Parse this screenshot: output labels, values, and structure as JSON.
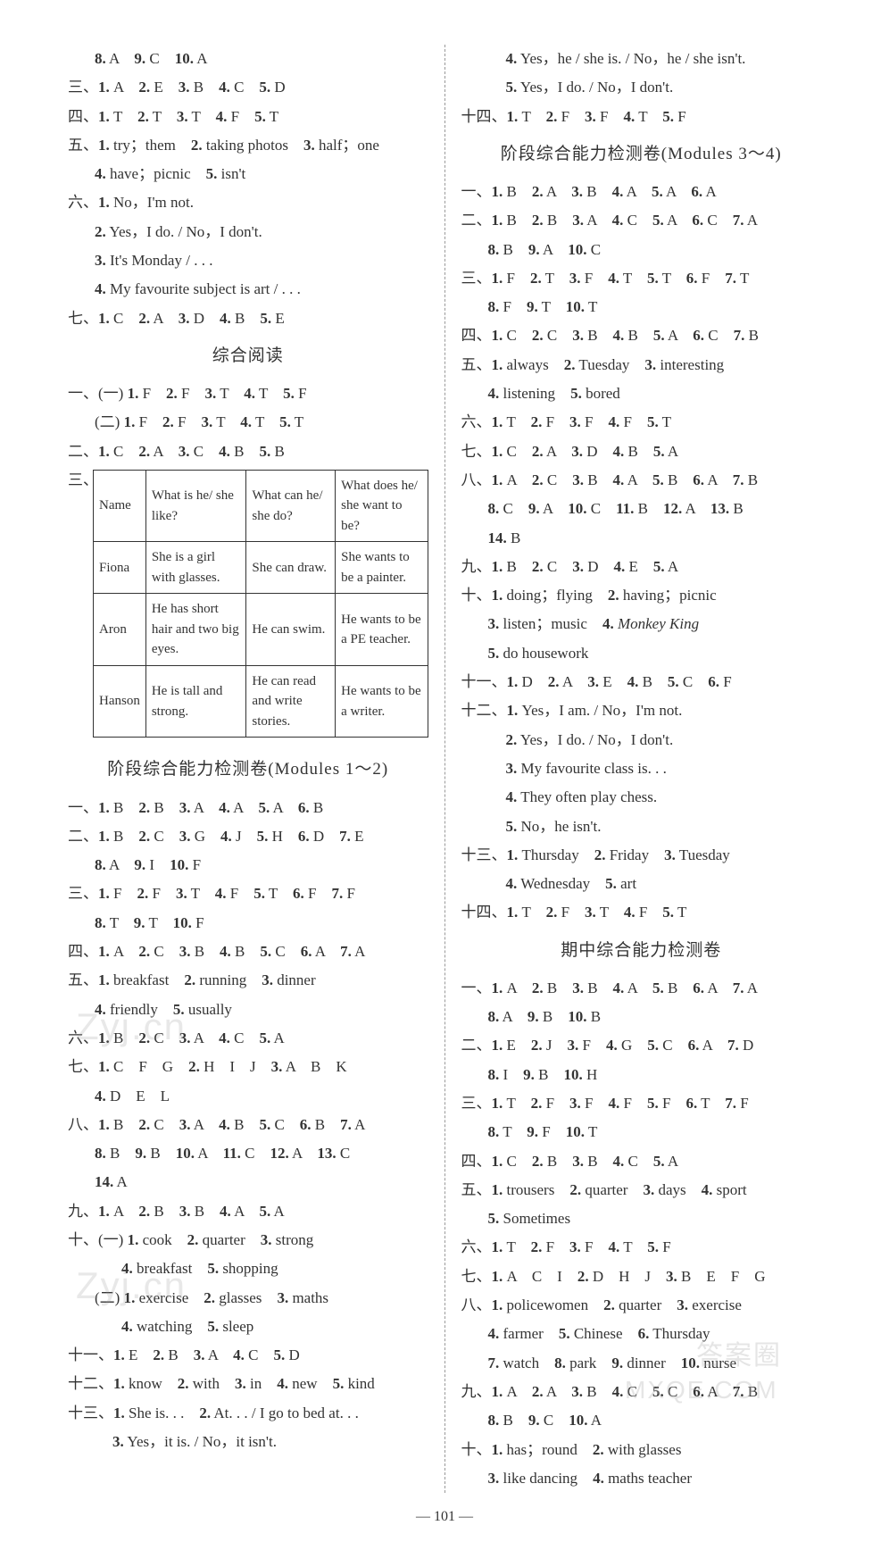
{
  "page_number": "— 101 —",
  "watermarks": [
    "Zyj.cn",
    "Zyj.cn",
    "答案圈",
    "MXQE.COM"
  ],
  "left": {
    "top_lines": [
      {
        "cls": "indent1",
        "html": "<b>8.</b> A　<b>9.</b> C　<b>10.</b> A"
      },
      {
        "cls": "",
        "html": "三、<b>1.</b> A　<b>2.</b> E　<b>3.</b> B　<b>4.</b> C　<b>5.</b> D"
      },
      {
        "cls": "",
        "html": "四、<b>1.</b> T　<b>2.</b> T　<b>3.</b> T　<b>4.</b> F　<b>5.</b> T"
      },
      {
        "cls": "",
        "html": "五、<b>1.</b> try；them　<b>2.</b> taking photos　<b>3.</b> half；one"
      },
      {
        "cls": "indent1",
        "html": "<b>4.</b> have；picnic　<b>5.</b> isn't"
      },
      {
        "cls": "",
        "html": "六、<b>1.</b> No，I'm not."
      },
      {
        "cls": "indent1",
        "html": "<b>2.</b> Yes，I do. / No，I don't."
      },
      {
        "cls": "indent1",
        "html": "<b>3.</b> It's Monday / . . ."
      },
      {
        "cls": "indent1",
        "html": "<b>4.</b> My favourite subject is art / . . ."
      },
      {
        "cls": "",
        "html": "七、<b>1.</b> C　<b>2.</b> A　<b>3.</b> D　<b>4.</b> B　<b>5.</b> E"
      }
    ],
    "reading_title": "综合阅读",
    "reading_lines": [
      {
        "cls": "",
        "html": "一、(一) <b>1.</b> F　<b>2.</b> F　<b>3.</b> T　<b>4.</b> T　<b>5.</b> F"
      },
      {
        "cls": "indent1",
        "html": "(二) <b>1.</b> F　<b>2.</b> F　<b>3.</b> T　<b>4.</b> T　<b>5.</b> T"
      },
      {
        "cls": "",
        "html": "二、<b>1.</b> C　<b>2.</b> A　<b>3.</b> C　<b>4.</b> B　<b>5.</b> B"
      }
    ],
    "table_label": "三、",
    "table": {
      "headers": [
        "Name",
        "What is he/ she like?",
        "What can he/ she do?",
        "What does he/ she want to be?"
      ],
      "rows": [
        [
          "Fiona",
          "She is a girl with glasses.",
          "She can draw.",
          "She wants to be a painter."
        ],
        [
          "Aron",
          "He has short hair and two big eyes.",
          "He can swim.",
          "He wants to be a PE teacher."
        ],
        [
          "Hanson",
          "He is tall and strong.",
          "He can read and write stories.",
          "He wants to be a writer."
        ]
      ],
      "col_widths": [
        "58px",
        "auto",
        "auto",
        "auto"
      ]
    },
    "stage1_title": "阶段综合能力检测卷(Modules 1～2)",
    "stage1_lines": [
      {
        "cls": "",
        "html": "一、<b>1.</b> B　<b>2.</b> B　<b>3.</b> A　<b>4.</b> A　<b>5.</b> A　<b>6.</b> B"
      },
      {
        "cls": "",
        "html": "二、<b>1.</b> B　<b>2.</b> C　<b>3.</b> G　<b>4.</b> J　<b>5.</b> H　<b>6.</b> D　<b>7.</b> E"
      },
      {
        "cls": "indent1",
        "html": "<b>8.</b> A　<b>9.</b> I　<b>10.</b> F"
      },
      {
        "cls": "",
        "html": "三、<b>1.</b> F　<b>2.</b> F　<b>3.</b> T　<b>4.</b> F　<b>5.</b> T　<b>6.</b> F　<b>7.</b> F"
      },
      {
        "cls": "indent1",
        "html": "<b>8.</b> T　<b>9.</b> T　<b>10.</b> F"
      },
      {
        "cls": "",
        "html": "四、<b>1.</b> A　<b>2.</b> C　<b>3.</b> B　<b>4.</b> B　<b>5.</b> C　<b>6.</b> A　<b>7.</b> A"
      },
      {
        "cls": "",
        "html": "五、<b>1.</b> breakfast　<b>2.</b> running　<b>3.</b> dinner"
      },
      {
        "cls": "indent1",
        "html": "<b>4.</b> friendly　<b>5.</b> usually"
      },
      {
        "cls": "",
        "html": "六、<b>1.</b> B　<b>2.</b> C　<b>3.</b> A　<b>4.</b> C　<b>5.</b> A"
      },
      {
        "cls": "",
        "html": "七、<b>1.</b> C　F　G　<b>2.</b> H　I　J　<b>3.</b> A　B　K"
      },
      {
        "cls": "indent1",
        "html": "<b>4.</b> D　E　L"
      },
      {
        "cls": "",
        "html": "八、<b>1.</b> B　<b>2.</b> C　<b>3.</b> A　<b>4.</b> B　<b>5.</b> C　<b>6.</b> B　<b>7.</b> A"
      },
      {
        "cls": "indent1",
        "html": "<b>8.</b> B　<b>9.</b> B　<b>10.</b> A　<b>11.</b> C　<b>12.</b> A　<b>13.</b> C"
      },
      {
        "cls": "indent1",
        "html": "<b>14.</b> A"
      },
      {
        "cls": "",
        "html": "九、<b>1.</b> A　<b>2.</b> B　<b>3.</b> B　<b>4.</b> A　<b>5.</b> A"
      },
      {
        "cls": "",
        "html": "十、(一) <b>1.</b> cook　<b>2.</b> quarter　<b>3.</b> strong"
      },
      {
        "cls": "indent3",
        "html": "<b>4.</b> breakfast　<b>5.</b> shopping"
      },
      {
        "cls": "indent1",
        "html": "(二) <b>1.</b> exercise　<b>2.</b> glasses　<b>3.</b> maths"
      },
      {
        "cls": "indent3",
        "html": "<b>4.</b> watching　<b>5.</b> sleep"
      },
      {
        "cls": "",
        "html": "十一、<b>1.</b> E　<b>2.</b> B　<b>3.</b> A　<b>4.</b> C　<b>5.</b> D"
      },
      {
        "cls": "",
        "html": "十二、<b>1.</b> know　<b>2.</b> with　<b>3.</b> in　<b>4.</b> new　<b>5.</b> kind"
      },
      {
        "cls": "",
        "html": "十三、<b>1.</b> She is. . .　<b>2.</b> At. . . / I go to bed at. . ."
      },
      {
        "cls": "indent2",
        "html": "<b>3.</b> Yes，it is. / No，it isn't."
      }
    ]
  },
  "right": {
    "top_lines": [
      {
        "cls": "indent2",
        "html": "<b>4.</b> Yes，he / she is. / No，he / she isn't."
      },
      {
        "cls": "indent2",
        "html": "<b>5.</b> Yes，I do. / No，I don't."
      },
      {
        "cls": "",
        "html": "十四、<b>1.</b> T　<b>2.</b> F　<b>3.</b> F　<b>4.</b> T　<b>5.</b> F"
      }
    ],
    "stage2_title": "阶段综合能力检测卷(Modules 3～4)",
    "stage2_lines": [
      {
        "cls": "",
        "html": "一、<b>1.</b> B　<b>2.</b> A　<b>3.</b> B　<b>4.</b> A　<b>5.</b> A　<b>6.</b> A"
      },
      {
        "cls": "",
        "html": "二、<b>1.</b> B　<b>2.</b> B　<b>3.</b> A　<b>4.</b> C　<b>5.</b> A　<b>6.</b> C　<b>7.</b> A"
      },
      {
        "cls": "indent1",
        "html": "<b>8.</b> B　<b>9.</b> A　<b>10.</b> C"
      },
      {
        "cls": "",
        "html": "三、<b>1.</b> F　<b>2.</b> T　<b>3.</b> F　<b>4.</b> T　<b>5.</b> T　<b>6.</b> F　<b>7.</b> T"
      },
      {
        "cls": "indent1",
        "html": "<b>8.</b> F　<b>9.</b> T　<b>10.</b> T"
      },
      {
        "cls": "",
        "html": "四、<b>1.</b> C　<b>2.</b> C　<b>3.</b> B　<b>4.</b> B　<b>5.</b> A　<b>6.</b> C　<b>7.</b> B"
      },
      {
        "cls": "",
        "html": "五、<b>1.</b> always　<b>2.</b> Tuesday　<b>3.</b> interesting"
      },
      {
        "cls": "indent1",
        "html": "<b>4.</b> listening　<b>5.</b> bored"
      },
      {
        "cls": "",
        "html": "六、<b>1.</b> T　<b>2.</b> F　<b>3.</b> F　<b>4.</b> F　<b>5.</b> T"
      },
      {
        "cls": "",
        "html": "七、<b>1.</b> C　<b>2.</b> A　<b>3.</b> D　<b>4.</b> B　<b>5.</b> A"
      },
      {
        "cls": "",
        "html": "八、<b>1.</b> A　<b>2.</b> C　<b>3.</b> B　<b>4.</b> A　<b>5.</b> B　<b>6.</b> A　<b>7.</b> B"
      },
      {
        "cls": "indent1",
        "html": "<b>8.</b> C　<b>9.</b> A　<b>10.</b> C　<b>11.</b> B　<b>12.</b> A　<b>13.</b> B"
      },
      {
        "cls": "indent1",
        "html": "<b>14.</b> B"
      },
      {
        "cls": "",
        "html": "九、<b>1.</b> B　<b>2.</b> C　<b>3.</b> D　<b>4.</b> E　<b>5.</b> A"
      },
      {
        "cls": "",
        "html": "十、<b>1.</b> doing；flying　<b>2.</b> having；picnic"
      },
      {
        "cls": "indent1",
        "html": "<b>3.</b> listen；music　<b>4.</b> <span class=\"italic\">Monkey King</span>"
      },
      {
        "cls": "indent1",
        "html": "<b>5.</b> do housework"
      },
      {
        "cls": "",
        "html": "十一、<b>1.</b> D　<b>2.</b> A　<b>3.</b> E　<b>4.</b> B　<b>5.</b> C　<b>6.</b> F"
      },
      {
        "cls": "",
        "html": "十二、<b>1.</b> Yes，I am. / No，I'm not."
      },
      {
        "cls": "indent2",
        "html": "<b>2.</b> Yes，I do. / No，I don't."
      },
      {
        "cls": "indent2",
        "html": "<b>3.</b> My favourite class is. . ."
      },
      {
        "cls": "indent2",
        "html": "<b>4.</b> They often play chess."
      },
      {
        "cls": "indent2",
        "html": "<b>5.</b> No，he isn't."
      },
      {
        "cls": "",
        "html": "十三、<b>1.</b> Thursday　<b>2.</b> Friday　<b>3.</b> Tuesday"
      },
      {
        "cls": "indent2",
        "html": "<b>4.</b> Wednesday　<b>5.</b> art"
      },
      {
        "cls": "",
        "html": "十四、<b>1.</b> T　<b>2.</b> F　<b>3.</b> T　<b>4.</b> F　<b>5.</b> T"
      }
    ],
    "mid_title": "期中综合能力检测卷",
    "mid_lines": [
      {
        "cls": "",
        "html": "一、<b>1.</b> A　<b>2.</b> B　<b>3.</b> B　<b>4.</b> A　<b>5.</b> B　<b>6.</b> A　<b>7.</b> A"
      },
      {
        "cls": "indent1",
        "html": "<b>8.</b> A　<b>9.</b> B　<b>10.</b> B"
      },
      {
        "cls": "",
        "html": "二、<b>1.</b> E　<b>2.</b> J　<b>3.</b> F　<b>4.</b> G　<b>5.</b> C　<b>6.</b> A　<b>7.</b> D"
      },
      {
        "cls": "indent1",
        "html": "<b>8.</b> I　<b>9.</b> B　<b>10.</b> H"
      },
      {
        "cls": "",
        "html": "三、<b>1.</b> T　<b>2.</b> F　<b>3.</b> F　<b>4.</b> F　<b>5.</b> F　<b>6.</b> T　<b>7.</b> F"
      },
      {
        "cls": "indent1",
        "html": "<b>8.</b> T　<b>9.</b> F　<b>10.</b> T"
      },
      {
        "cls": "",
        "html": "四、<b>1.</b> C　<b>2.</b> B　<b>3.</b> B　<b>4.</b> C　<b>5.</b> A"
      },
      {
        "cls": "",
        "html": "五、<b>1.</b> trousers　<b>2.</b> quarter　<b>3.</b> days　<b>4.</b> sport"
      },
      {
        "cls": "indent1",
        "html": "<b>5.</b> Sometimes"
      },
      {
        "cls": "",
        "html": "六、<b>1.</b> T　<b>2.</b> F　<b>3.</b> F　<b>4.</b> T　<b>5.</b> F"
      },
      {
        "cls": "",
        "html": "七、<b>1.</b> A　C　I　<b>2.</b> D　H　J　<b>3.</b> B　E　F　G"
      },
      {
        "cls": "",
        "html": "八、<b>1.</b> policewomen　<b>2.</b> quarter　<b>3.</b> exercise"
      },
      {
        "cls": "indent1",
        "html": "<b>4.</b> farmer　<b>5.</b> Chinese　<b>6.</b> Thursday"
      },
      {
        "cls": "indent1",
        "html": "<b>7.</b> watch　<b>8.</b> park　<b>9.</b> dinner　<b>10.</b> nurse"
      },
      {
        "cls": "",
        "html": "九、<b>1.</b> A　<b>2.</b> A　<b>3.</b> B　<b>4.</b> C　<b>5.</b> C　<b>6.</b> A　<b>7.</b> B"
      },
      {
        "cls": "indent1",
        "html": "<b>8.</b> B　<b>9.</b> C　<b>10.</b> A"
      },
      {
        "cls": "",
        "html": "十、<b>1.</b> has；round　<b>2.</b> with glasses"
      },
      {
        "cls": "indent1",
        "html": "<b>3.</b> like dancing　<b>4.</b> maths teacher"
      }
    ]
  }
}
